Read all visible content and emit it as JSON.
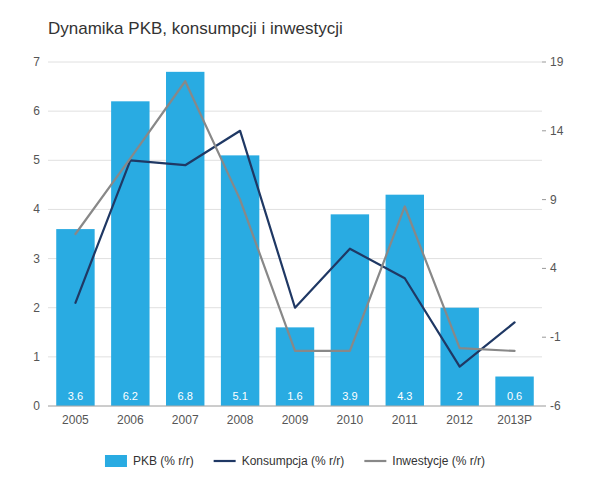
{
  "chart_data": {
    "type": "bar",
    "title": "Dynamika PKB, konsumpcji i inwestycji",
    "categories": [
      "2005",
      "2006",
      "2007",
      "2008",
      "2009",
      "2010",
      "2011",
      "2012",
      "2013P"
    ],
    "series": [
      {
        "name": "PKB (% r/r)",
        "type": "bar",
        "color": "#29ABE2",
        "data_labels": true,
        "values": [
          3.6,
          6.2,
          6.8,
          5.1,
          1.6,
          3.9,
          4.3,
          2.0,
          0.6
        ]
      },
      {
        "name": "Konsumpcja (% r/r)",
        "type": "line",
        "color": "#1F3864",
        "values": [
          2.1,
          5.0,
          4.9,
          5.6,
          2.0,
          3.2,
          2.6,
          0.8,
          1.7
        ]
      },
      {
        "name": "Inwestycje (% r/r)",
        "type": "line",
        "color": "#888888",
        "axis": "y2",
        "values": [
          6.5,
          12.0,
          17.6,
          9.0,
          -2.0,
          -2.0,
          8.5,
          -1.8,
          -2.0
        ]
      }
    ],
    "ylim": [
      0,
      7
    ],
    "yticks": [
      0,
      1,
      2,
      3,
      4,
      5,
      6,
      7
    ],
    "y2lim": [
      -6,
      19
    ],
    "y2ticks": [
      -6,
      -1,
      4,
      9,
      14,
      19
    ],
    "grid": true,
    "legend": "bottom"
  }
}
